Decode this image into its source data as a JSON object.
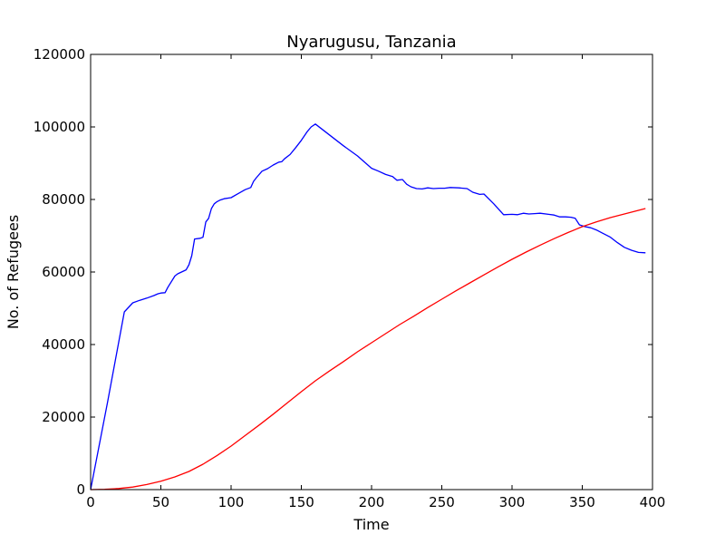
{
  "chart_data": {
    "type": "line",
    "title": "Nyarugusu, Tanzania",
    "xlabel": "Time",
    "ylabel": "No. of Refugees",
    "xlim": [
      0,
      400
    ],
    "ylim": [
      0,
      120000
    ],
    "xticks": [
      0,
      50,
      100,
      150,
      200,
      250,
      300,
      350,
      400
    ],
    "yticks": [
      0,
      20000,
      40000,
      60000,
      80000,
      100000,
      120000
    ],
    "grid": false,
    "legend": "none",
    "series": [
      {
        "color": "#0000ff",
        "points": [
          [
            0,
            0
          ],
          [
            12,
            24000
          ],
          [
            24,
            49000
          ],
          [
            30,
            51500
          ],
          [
            35,
            52200
          ],
          [
            40,
            52800
          ],
          [
            45,
            53500
          ],
          [
            48,
            54000
          ],
          [
            50,
            54200
          ],
          [
            53,
            54300
          ],
          [
            55,
            55800
          ],
          [
            60,
            58900
          ],
          [
            62,
            59500
          ],
          [
            68,
            60600
          ],
          [
            70,
            62000
          ],
          [
            72,
            64500
          ],
          [
            74,
            69100
          ],
          [
            78,
            69300
          ],
          [
            80,
            69600
          ],
          [
            82,
            73800
          ],
          [
            84,
            74800
          ],
          [
            86,
            77500
          ],
          [
            88,
            78800
          ],
          [
            90,
            79400
          ],
          [
            92,
            79800
          ],
          [
            95,
            80200
          ],
          [
            100,
            80500
          ],
          [
            105,
            81600
          ],
          [
            110,
            82700
          ],
          [
            114,
            83300
          ],
          [
            116,
            85000
          ],
          [
            118,
            86000
          ],
          [
            122,
            87800
          ],
          [
            126,
            88500
          ],
          [
            130,
            89500
          ],
          [
            134,
            90300
          ],
          [
            136,
            90400
          ],
          [
            138,
            91200
          ],
          [
            142,
            92400
          ],
          [
            146,
            94300
          ],
          [
            150,
            96300
          ],
          [
            154,
            98600
          ],
          [
            157,
            100000
          ],
          [
            160,
            100800
          ],
          [
            165,
            99300
          ],
          [
            170,
            97800
          ],
          [
            180,
            94800
          ],
          [
            190,
            92000
          ],
          [
            200,
            88600
          ],
          [
            205,
            87800
          ],
          [
            210,
            86900
          ],
          [
            215,
            86300
          ],
          [
            218,
            85300
          ],
          [
            222,
            85500
          ],
          [
            225,
            84200
          ],
          [
            228,
            83500
          ],
          [
            232,
            83000
          ],
          [
            236,
            82900
          ],
          [
            240,
            83200
          ],
          [
            244,
            83000
          ],
          [
            248,
            83100
          ],
          [
            252,
            83100
          ],
          [
            256,
            83300
          ],
          [
            262,
            83200
          ],
          [
            268,
            83000
          ],
          [
            272,
            82000
          ],
          [
            277,
            81400
          ],
          [
            280,
            81500
          ],
          [
            287,
            78800
          ],
          [
            294,
            75800
          ],
          [
            300,
            75900
          ],
          [
            304,
            75800
          ],
          [
            308,
            76200
          ],
          [
            312,
            76000
          ],
          [
            316,
            76100
          ],
          [
            320,
            76200
          ],
          [
            326,
            75900
          ],
          [
            330,
            75700
          ],
          [
            334,
            75200
          ],
          [
            338,
            75200
          ],
          [
            342,
            75100
          ],
          [
            345,
            74800
          ],
          [
            348,
            73000
          ],
          [
            352,
            72500
          ],
          [
            356,
            72200
          ],
          [
            360,
            71600
          ],
          [
            364,
            70800
          ],
          [
            370,
            69600
          ],
          [
            375,
            68100
          ],
          [
            380,
            66800
          ],
          [
            385,
            66000
          ],
          [
            390,
            65400
          ],
          [
            395,
            65300
          ]
        ]
      },
      {
        "color": "#ff0000",
        "points": [
          [
            0,
            0
          ],
          [
            10,
            80
          ],
          [
            20,
            300
          ],
          [
            30,
            700
          ],
          [
            40,
            1400
          ],
          [
            50,
            2300
          ],
          [
            60,
            3500
          ],
          [
            70,
            5000
          ],
          [
            80,
            7000
          ],
          [
            90,
            9400
          ],
          [
            100,
            12000
          ],
          [
            110,
            14900
          ],
          [
            120,
            17800
          ],
          [
            130,
            20800
          ],
          [
            140,
            23900
          ],
          [
            150,
            27000
          ],
          [
            160,
            30000
          ],
          [
            170,
            32700
          ],
          [
            180,
            35300
          ],
          [
            190,
            38000
          ],
          [
            200,
            40500
          ],
          [
            210,
            43000
          ],
          [
            220,
            45500
          ],
          [
            230,
            47800
          ],
          [
            240,
            50200
          ],
          [
            250,
            52500
          ],
          [
            260,
            54800
          ],
          [
            270,
            57000
          ],
          [
            280,
            59200
          ],
          [
            290,
            61400
          ],
          [
            300,
            63500
          ],
          [
            310,
            65500
          ],
          [
            320,
            67400
          ],
          [
            330,
            69200
          ],
          [
            340,
            70900
          ],
          [
            350,
            72500
          ],
          [
            360,
            73800
          ],
          [
            370,
            75000
          ],
          [
            380,
            76000
          ],
          [
            390,
            77000
          ],
          [
            395,
            77500
          ]
        ]
      }
    ]
  }
}
